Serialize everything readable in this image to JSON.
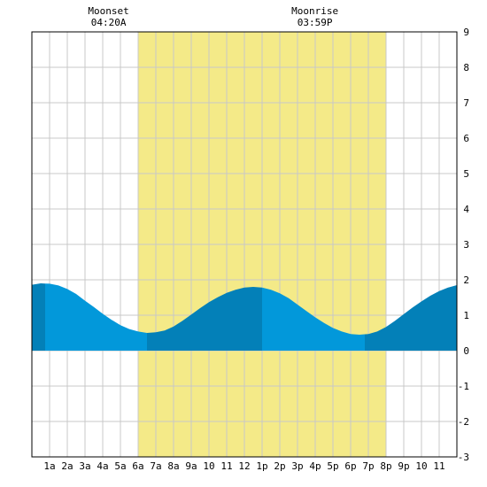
{
  "chart_data": {
    "type": "area",
    "title": "",
    "xlabel": "",
    "ylabel": "",
    "xlim": [
      0,
      24
    ],
    "ylim": [
      -3,
      9
    ],
    "grid": true,
    "x_tick_labels": [
      {
        "x": 1,
        "label": "1a"
      },
      {
        "x": 2,
        "label": "2a"
      },
      {
        "x": 3,
        "label": "3a"
      },
      {
        "x": 4,
        "label": "4a"
      },
      {
        "x": 5,
        "label": "5a"
      },
      {
        "x": 6,
        "label": "6a"
      },
      {
        "x": 7,
        "label": "7a"
      },
      {
        "x": 8,
        "label": "8a"
      },
      {
        "x": 9,
        "label": "9a"
      },
      {
        "x": 10,
        "label": "10"
      },
      {
        "x": 11,
        "label": "11"
      },
      {
        "x": 12,
        "label": "12"
      },
      {
        "x": 13,
        "label": "1p"
      },
      {
        "x": 14,
        "label": "2p"
      },
      {
        "x": 15,
        "label": "3p"
      },
      {
        "x": 16,
        "label": "4p"
      },
      {
        "x": 17,
        "label": "5p"
      },
      {
        "x": 18,
        "label": "6p"
      },
      {
        "x": 19,
        "label": "7p"
      },
      {
        "x": 20,
        "label": "8p"
      },
      {
        "x": 21,
        "label": "9p"
      },
      {
        "x": 22,
        "label": "10"
      },
      {
        "x": 23,
        "label": "11"
      }
    ],
    "y_ticks": [
      -3,
      -2,
      -1,
      0,
      1,
      2,
      3,
      4,
      5,
      6,
      7,
      8,
      9
    ],
    "daylight": {
      "start": 6.0,
      "end": 20.0
    },
    "moon_events": [
      {
        "name": "Moonset",
        "time": "04:20A",
        "x": 4.33
      },
      {
        "name": "Moonrise",
        "time": "03:59P",
        "x": 15.98
      }
    ],
    "tide_extremes": [
      {
        "x": 0.75,
        "y": 1.9
      },
      {
        "x": 6.5,
        "y": 0.5
      },
      {
        "x": 13.0,
        "y": 1.8
      },
      {
        "x": 18.8,
        "y": 0.45
      },
      {
        "x": 24.0,
        "y": 1.85
      }
    ],
    "series": [
      {
        "x": [
          0,
          0.5,
          1,
          1.5,
          2,
          2.5,
          3,
          3.5,
          4,
          4.5,
          5,
          5.5,
          6,
          6.5,
          7,
          7.5,
          8,
          8.5,
          9,
          9.5,
          10,
          10.5,
          11,
          11.5,
          12,
          12.5,
          13,
          13.5,
          14,
          14.5,
          15,
          15.5,
          16,
          16.5,
          17,
          17.5,
          18,
          18.5,
          19,
          19.5,
          20,
          20.5,
          21,
          21.5,
          22,
          22.5,
          23,
          23.5,
          24
        ],
        "y": [
          1.86,
          1.9,
          1.89,
          1.84,
          1.74,
          1.6,
          1.41,
          1.23,
          1.04,
          0.87,
          0.72,
          0.61,
          0.54,
          0.5,
          0.52,
          0.57,
          0.68,
          0.84,
          1.02,
          1.2,
          1.37,
          1.51,
          1.63,
          1.72,
          1.78,
          1.8,
          1.78,
          1.72,
          1.62,
          1.48,
          1.3,
          1.12,
          0.94,
          0.78,
          0.64,
          0.54,
          0.47,
          0.45,
          0.47,
          0.54,
          0.67,
          0.84,
          1.03,
          1.22,
          1.39,
          1.55,
          1.68,
          1.78,
          1.85
        ]
      }
    ]
  }
}
